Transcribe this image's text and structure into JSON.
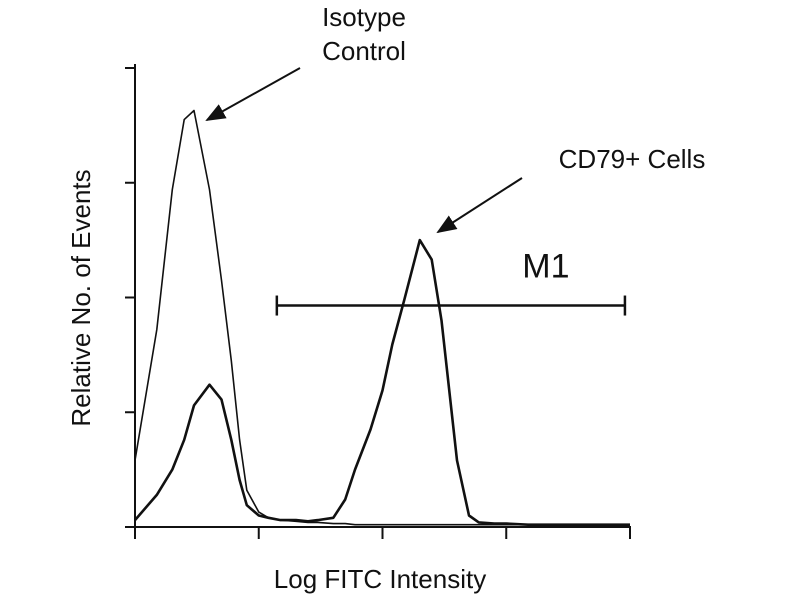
{
  "chart_data": {
    "type": "line",
    "x_label": "Log FITC Intensity",
    "y_label": "Relative No. of Events",
    "xscale": "log",
    "xlim": [
      1,
      10000
    ],
    "xticks": [
      1,
      10,
      100,
      1000,
      10000
    ],
    "ylim": [
      0,
      4
    ],
    "yticks": [
      0,
      1,
      2,
      3,
      4
    ],
    "x": [
      1,
      1.5,
      2,
      2.5,
      3,
      4,
      5,
      6,
      7,
      8,
      10,
      12,
      15,
      20,
      25,
      30,
      40,
      50,
      60,
      80,
      100,
      120,
      150,
      200,
      250,
      300,
      400,
      500,
      600,
      800,
      1000,
      1500,
      2000,
      3000,
      5000,
      10000
    ],
    "series": [
      {
        "name": "Isotype Control",
        "color": "#111111",
        "values": [
          0.58,
          1.72,
          2.94,
          3.55,
          3.63,
          2.94,
          2.15,
          1.45,
          0.76,
          0.32,
          0.13,
          0.08,
          0.06,
          0.05,
          0.04,
          0.04,
          0.03,
          0.03,
          0.02,
          0.02,
          0.02,
          0.02,
          0.02,
          0.02,
          0.02,
          0.02,
          0.02,
          0.02,
          0.02,
          0.02,
          0.02,
          0.02,
          0.02,
          0.02,
          0.02,
          0.02
        ]
      },
      {
        "name": "CD79+ Cells",
        "color": "#111111",
        "values": [
          0.06,
          0.28,
          0.5,
          0.76,
          1.06,
          1.24,
          1.11,
          0.76,
          0.41,
          0.19,
          0.1,
          0.08,
          0.06,
          0.06,
          0.05,
          0.06,
          0.08,
          0.24,
          0.5,
          0.85,
          1.19,
          1.59,
          1.98,
          2.5,
          2.33,
          1.8,
          0.58,
          0.1,
          0.04,
          0.03,
          0.03,
          0.02,
          0.02,
          0.02,
          0.02,
          0.02
        ]
      }
    ],
    "annotations": [
      {
        "lines": [
          "Isotype",
          "Control"
        ]
      },
      {
        "lines": [
          "CD79+ Cells"
        ]
      }
    ],
    "gate": {
      "label": "M1",
      "range": [
        14,
        9100
      ],
      "y": 1.93
    }
  }
}
